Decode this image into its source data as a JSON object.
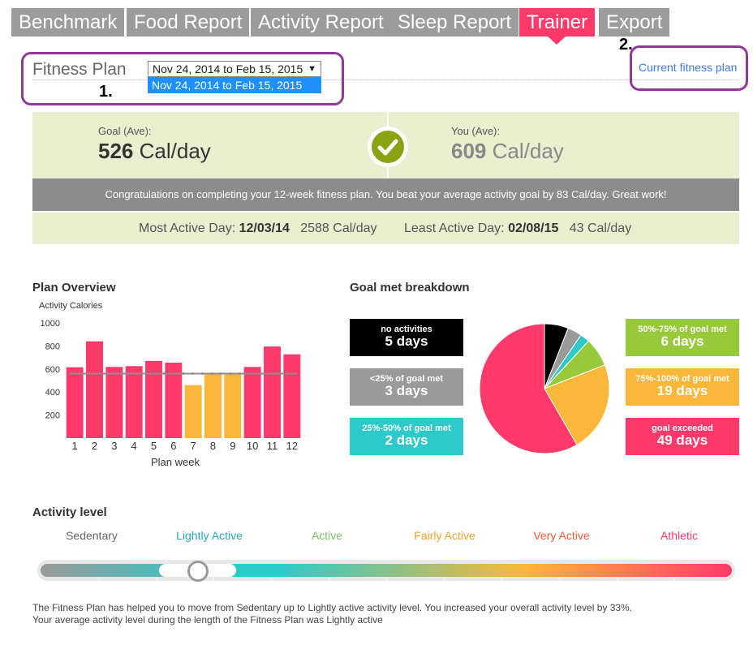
{
  "tabs": [
    {
      "label": "Benchmark"
    },
    {
      "label": "Food Report"
    },
    {
      "label": "Activity Report"
    },
    {
      "label": "Sleep Report"
    },
    {
      "label": "Trainer"
    },
    {
      "label": "Export"
    }
  ],
  "header": {
    "title": "Fitness Plan",
    "selected_plan": "Nov 24, 2014 to Feb 15, 2015",
    "dropdown_option": "Nov 24, 2014 to Feb 15, 2015",
    "current_link": "Current fitness plan",
    "annotation_1": "1.",
    "annotation_2": "2."
  },
  "summary": {
    "goal_label": "Goal (Ave):",
    "goal_value": "526",
    "goal_unit": "Cal/day",
    "you_label": "You (Ave):",
    "you_value": "609",
    "you_unit": "Cal/day",
    "banner": "Congratulations on completing your 12-week fitness plan. You beat your average activity goal by 83 Cal/day. Great work!",
    "most_active_label": "Most Active Day:",
    "most_active_date": "12/03/14",
    "most_active_value": "2588 Cal/day",
    "least_active_label": "Least Active Day:",
    "least_active_date": "02/08/15",
    "least_active_value": "43 Cal/day"
  },
  "plan_overview": {
    "title": "Plan Overview",
    "ylabel": "Activity Calories",
    "xlabel": "Plan week"
  },
  "goal_breakdown": {
    "title": "Goal met breakdown",
    "items": [
      {
        "label": "no activities",
        "value": "5 days",
        "color": "#000000"
      },
      {
        "label": "<25% of goal met",
        "value": "3 days",
        "color": "#9a9a9a"
      },
      {
        "label": "25%-50% of goal met",
        "value": "2 days",
        "color": "#2ec9c9"
      },
      {
        "label": "50%-75% of goal met",
        "value": "6 days",
        "color": "#97c93a"
      },
      {
        "label": "75%-100% of goal met",
        "value": "19 days",
        "color": "#fbb73a"
      },
      {
        "label": "goal exceeded",
        "value": "49 days",
        "color": "#ff3a6a"
      }
    ]
  },
  "chart_data": [
    {
      "type": "bar",
      "title": "Plan Overview",
      "ylabel": "Activity Calories",
      "xlabel": "Plan week",
      "categories": [
        "1",
        "2",
        "3",
        "4",
        "5",
        "6",
        "7",
        "8",
        "9",
        "10",
        "11",
        "12"
      ],
      "values": [
        615,
        840,
        618,
        625,
        670,
        655,
        460,
        560,
        560,
        618,
        795,
        727
      ],
      "goal_line": 560,
      "ylim": [
        0,
        1000
      ],
      "yticks": [
        200,
        400,
        600,
        800,
        1000
      ],
      "bar_colors": [
        "#ff3a6a",
        "#ff3a6a",
        "#ff3a6a",
        "#ff3a6a",
        "#ff3a6a",
        "#ff3a6a",
        "#fbb73a",
        "#fbb73a",
        "#fbb73a",
        "#ff3a6a",
        "#ff3a6a",
        "#ff3a6a"
      ],
      "goal_line_color": "#8c8c8c"
    },
    {
      "type": "pie",
      "title": "Goal met breakdown",
      "labels": [
        "no activities",
        "<25% of goal met",
        "25%-50% of goal met",
        "50%-75% of goal met",
        "75%-100% of goal met",
        "goal exceeded"
      ],
      "values": [
        5,
        3,
        2,
        6,
        19,
        49
      ],
      "colors": [
        "#000000",
        "#9a9a9a",
        "#2ec9c9",
        "#97c93a",
        "#fbb73a",
        "#ff3a6a"
      ]
    }
  ],
  "activity_level": {
    "title": "Activity level",
    "levels": [
      {
        "label": "Sedentary",
        "color": "#666666"
      },
      {
        "label": "Lightly Active",
        "color": "#2aa6b5"
      },
      {
        "label": "Active",
        "color": "#7cc06a"
      },
      {
        "label": "Fairly Active",
        "color": "#f0a030"
      },
      {
        "label": "Very Active",
        "color": "#f05a3a"
      },
      {
        "label": "Athletic",
        "color": "#ff3a6a"
      }
    ],
    "slider_level": "Lightly Active",
    "description_line1": "The Fitness Plan has helped you to move from Sedentary up to Lightly active activity level. You increased your overall activity level by 33%.",
    "description_line2": "Your average activity level during the length of the Fitness Plan was Lightly active"
  }
}
